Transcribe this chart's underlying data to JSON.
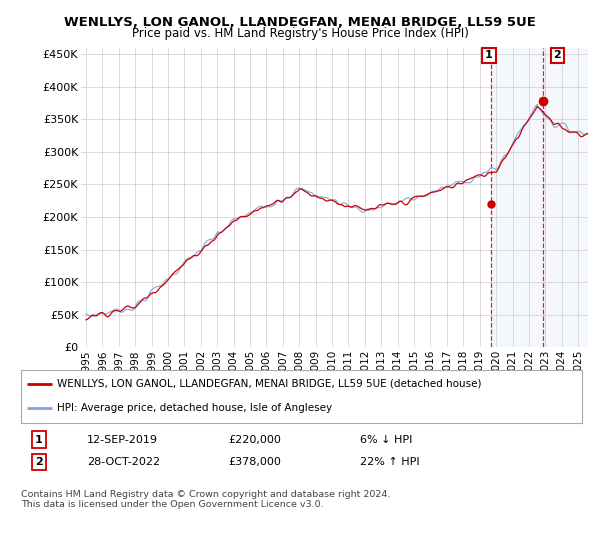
{
  "title": "WENLLYS, LON GANOL, LLANDEGFAN, MENAI BRIDGE, LL59 5UE",
  "subtitle": "Price paid vs. HM Land Registry's House Price Index (HPI)",
  "ylabel_ticks": [
    "£0",
    "£50K",
    "£100K",
    "£150K",
    "£200K",
    "£250K",
    "£300K",
    "£350K",
    "£400K",
    "£450K"
  ],
  "ytick_values": [
    0,
    50000,
    100000,
    150000,
    200000,
    250000,
    300000,
    350000,
    400000,
    450000
  ],
  "ylim": [
    0,
    460000
  ],
  "xlim_start": 1994.7,
  "xlim_end": 2025.6,
  "marker1_x": 2019.71,
  "marker1_y": 220000,
  "marker2_x": 2022.83,
  "marker2_y": 378000,
  "line1_color": "#cc0000",
  "line2_color": "#7aaadd",
  "highlight_color": "#ddeeff",
  "annotation1_date": "12-SEP-2019",
  "annotation1_price": "£220,000",
  "annotation1_hpi": "6% ↓ HPI",
  "annotation2_date": "28-OCT-2022",
  "annotation2_price": "£378,000",
  "annotation2_hpi": "22% ↑ HPI",
  "legend_label1": "WENLLYS, LON GANOL, LLANDEGFAN, MENAI BRIDGE, LL59 5UE (detached house)",
  "legend_label2": "HPI: Average price, detached house, Isle of Anglesey",
  "footnote": "Contains HM Land Registry data © Crown copyright and database right 2024.\nThis data is licensed under the Open Government Licence v3.0.",
  "background_color": "#ffffff",
  "grid_color": "#cccccc"
}
